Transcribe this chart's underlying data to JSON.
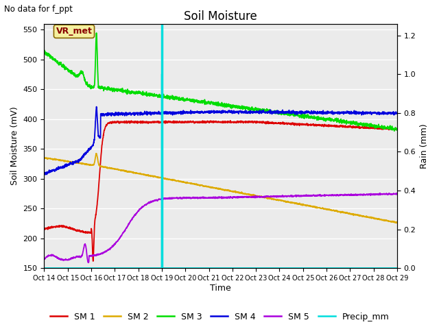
{
  "title": "Soil Moisture",
  "top_left_text": "No data for f_ppt",
  "ylabel_left": "Soil Moisture (mV)",
  "ylabel_right": "Rain (mm)",
  "xlabel": "Time",
  "ylim_left": [
    150,
    560
  ],
  "ylim_right": [
    0.0,
    1.26
  ],
  "xlim": [
    0,
    15
  ],
  "x_tick_positions": [
    0,
    1,
    2,
    3,
    4,
    5,
    6,
    7,
    8,
    9,
    10,
    11,
    12,
    13,
    14,
    15
  ],
  "x_tick_labels": [
    "Oct 14",
    "Oct 15",
    "Oct 16",
    "Oct 17",
    "Oct 18",
    "Oct 19",
    "Oct 20",
    "Oct 21",
    "Oct 22",
    "Oct 23",
    "Oct 24",
    "Oct 25",
    "Oct 26",
    "Oct 27",
    "Oct 28",
    "Oct 29"
  ],
  "y_left_ticks": [
    150,
    200,
    250,
    300,
    350,
    400,
    450,
    500,
    550
  ],
  "y_right_ticks": [
    0.0,
    0.2,
    0.4,
    0.6,
    0.8,
    1.0,
    1.2
  ],
  "vr_met_label": "VR_met",
  "vline_x": 5.0,
  "colors": {
    "SM1": "#dd0000",
    "SM2": "#ddaa00",
    "SM3": "#00dd00",
    "SM4": "#0000dd",
    "SM5": "#aa00dd",
    "Precip": "#00dddd"
  },
  "background_color": "#ebebeb",
  "title_fontsize": 12,
  "label_fontsize": 9,
  "tick_fontsize": 8,
  "legend_fontsize": 9
}
